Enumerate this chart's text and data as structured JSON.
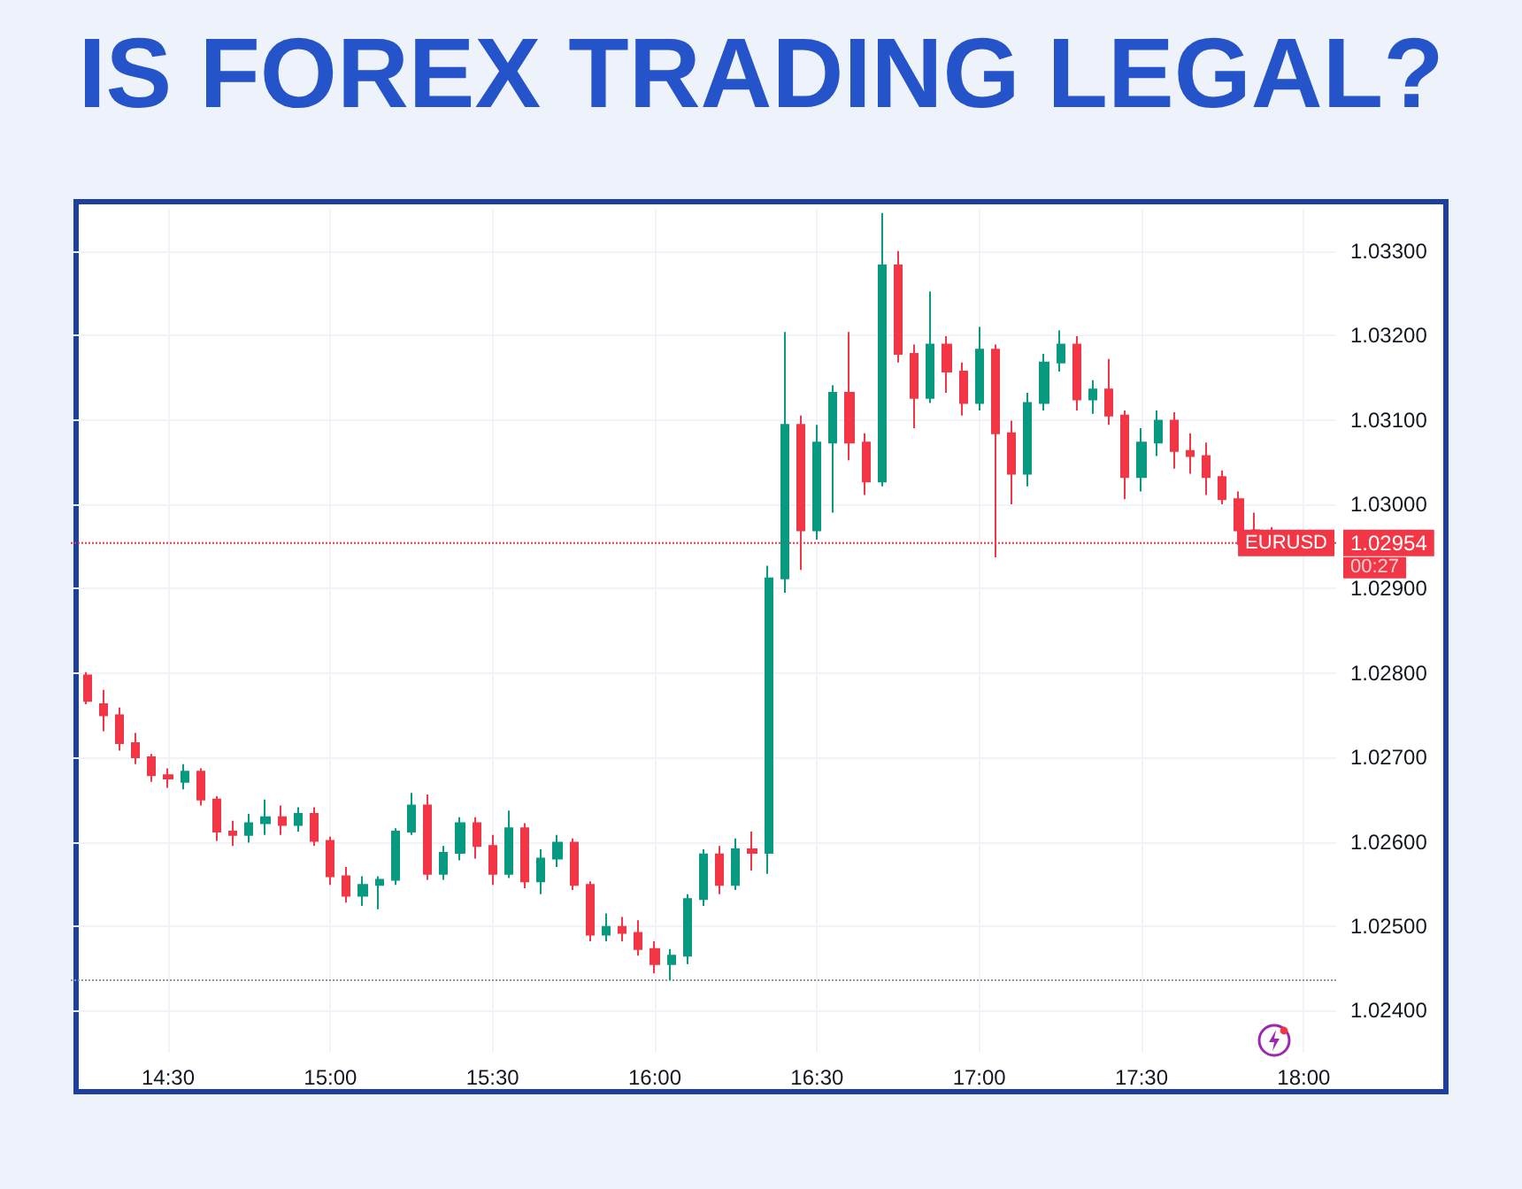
{
  "chart_data": {
    "type": "candlestick",
    "title": "IS FOREX TRADING LEGAL?",
    "x": [
      14.25,
      14.3,
      14.35,
      14.4,
      14.45,
      14.5,
      14.55,
      14.6,
      14.65,
      14.7,
      14.75,
      14.8,
      14.85,
      14.9,
      14.95,
      15,
      15.05,
      15.1,
      15.15,
      15.2,
      15.25,
      15.3,
      15.35,
      15.4,
      15.45,
      15.5,
      15.55,
      15.6,
      15.65,
      15.7,
      15.75,
      15.8,
      15.85,
      15.9,
      15.95,
      16,
      16.05,
      16.1,
      16.15,
      16.2,
      16.25,
      16.3,
      16.35,
      16.4,
      16.45,
      16.5,
      16.55,
      16.6,
      16.65,
      16.7,
      16.75,
      16.8,
      16.85,
      16.9,
      16.95,
      17,
      17.05,
      17.1,
      17.15,
      17.2,
      17.25,
      17.3,
      17.35,
      17.4,
      17.45,
      17.5,
      17.55,
      17.6,
      17.65,
      17.7,
      17.75,
      17.8,
      17.85,
      17.9
    ],
    "ohlc": [
      [
        1.02797,
        1.02801,
        1.02763,
        1.02767
      ],
      [
        1.02763,
        1.0278,
        1.02731,
        1.0275
      ],
      [
        1.0275,
        1.02759,
        1.02708,
        1.02717
      ],
      [
        1.02717,
        1.02729,
        1.02692,
        1.027
      ],
      [
        1.027,
        1.02704,
        1.02671,
        1.02679
      ],
      [
        1.02679,
        1.02687,
        1.02664,
        1.02675
      ],
      [
        1.02671,
        1.02692,
        1.02662,
        1.02683
      ],
      [
        1.02683,
        1.02687,
        1.02643,
        1.0265
      ],
      [
        1.0265,
        1.02654,
        1.02601,
        1.02612
      ],
      [
        1.02612,
        1.02625,
        1.02595,
        1.02608
      ],
      [
        1.02608,
        1.02633,
        1.02599,
        1.02622
      ],
      [
        1.02622,
        1.0265,
        1.02608,
        1.02629
      ],
      [
        1.02629,
        1.02643,
        1.02608,
        1.0262
      ],
      [
        1.0262,
        1.02641,
        1.02612,
        1.02633
      ],
      [
        1.02633,
        1.02641,
        1.02595,
        1.02601
      ],
      [
        1.02601,
        1.02606,
        1.02549,
        1.02559
      ],
      [
        1.02559,
        1.0257,
        1.02528,
        1.02536
      ],
      [
        1.02536,
        1.02559,
        1.02524,
        1.02549
      ],
      [
        1.02549,
        1.02559,
        1.0252,
        1.02555
      ],
      [
        1.02555,
        1.02616,
        1.02549,
        1.02612
      ],
      [
        1.02612,
        1.02658,
        1.02608,
        1.02643
      ],
      [
        1.02643,
        1.02656,
        1.02555,
        1.02562
      ],
      [
        1.02562,
        1.02595,
        1.02555,
        1.02587
      ],
      [
        1.02587,
        1.02629,
        1.02578,
        1.02622
      ],
      [
        1.02622,
        1.02629,
        1.0258,
        1.02595
      ],
      [
        1.02595,
        1.02608,
        1.02549,
        1.02562
      ],
      [
        1.02562,
        1.02637,
        1.02557,
        1.02616
      ],
      [
        1.02616,
        1.02622,
        1.02545,
        1.02553
      ],
      [
        1.02553,
        1.02591,
        1.02538,
        1.0258
      ],
      [
        1.0258,
        1.02608,
        1.0257,
        1.02599
      ],
      [
        1.02599,
        1.02604,
        1.02543,
        1.02549
      ],
      [
        1.02549,
        1.02553,
        1.02482,
        1.0249
      ],
      [
        1.0249,
        1.02515,
        1.02482,
        1.02499
      ],
      [
        1.02499,
        1.02511,
        1.02482,
        1.02492
      ],
      [
        1.02492,
        1.02507,
        1.02465,
        1.02473
      ],
      [
        1.02473,
        1.02482,
        1.02444,
        1.02455
      ],
      [
        1.02455,
        1.02473,
        1.02436,
        1.02465
      ],
      [
        1.02465,
        1.02538,
        1.02455,
        1.02532
      ],
      [
        1.02532,
        1.02591,
        1.02524,
        1.02585
      ],
      [
        1.02585,
        1.02595,
        1.02538,
        1.02549
      ],
      [
        1.02549,
        1.02604,
        1.02543,
        1.02591
      ],
      [
        1.02591,
        1.02612,
        1.02566,
        1.02587
      ],
      [
        1.02587,
        1.02927,
        1.02562,
        1.02912
      ],
      [
        1.02912,
        1.03204,
        1.02895,
        1.03094
      ],
      [
        1.03094,
        1.03105,
        1.02922,
        1.02969
      ],
      [
        1.02969,
        1.03094,
        1.02958,
        1.03073
      ],
      [
        1.03073,
        1.03141,
        1.0299,
        1.03132
      ],
      [
        1.03132,
        1.03204,
        1.03052,
        1.03073
      ],
      [
        1.03073,
        1.03084,
        1.03011,
        1.03027
      ],
      [
        1.03027,
        1.03345,
        1.03021,
        1.03283
      ],
      [
        1.03283,
        1.033,
        1.03168,
        1.03178
      ],
      [
        1.03178,
        1.03189,
        1.0309,
        1.03126
      ],
      [
        1.03126,
        1.03252,
        1.0312,
        1.03189
      ],
      [
        1.03189,
        1.03199,
        1.03132,
        1.03157
      ],
      [
        1.03157,
        1.03168,
        1.03105,
        1.0312
      ],
      [
        1.0312,
        1.0321,
        1.03111,
        1.03183
      ],
      [
        1.03183,
        1.03189,
        1.02937,
        1.03084
      ],
      [
        1.03084,
        1.03099,
        1.03,
        1.03036
      ],
      [
        1.03036,
        1.03132,
        1.03021,
        1.0312
      ],
      [
        1.0312,
        1.03178,
        1.03111,
        1.03168
      ],
      [
        1.03168,
        1.03206,
        1.03157,
        1.03189
      ],
      [
        1.03189,
        1.03199,
        1.03111,
        1.03124
      ],
      [
        1.03124,
        1.03147,
        1.03107,
        1.03136
      ],
      [
        1.03136,
        1.03172,
        1.03094,
        1.03105
      ],
      [
        1.03105,
        1.03111,
        1.03006,
        1.03032
      ],
      [
        1.03032,
        1.0309,
        1.03015,
        1.03073
      ],
      [
        1.03073,
        1.03111,
        1.03057,
        1.03099
      ],
      [
        1.03099,
        1.03109,
        1.03042,
        1.03063
      ],
      [
        1.03063,
        1.03084,
        1.03036,
        1.03057
      ],
      [
        1.03057,
        1.03073,
        1.03011,
        1.03032
      ],
      [
        1.03032,
        1.0304,
        1.03,
        1.03006
      ],
      [
        1.03006,
        1.03015,
        1.02952,
        1.02969
      ],
      [
        1.02969,
        1.0299,
        1.02943,
        1.0296
      ],
      [
        1.0296,
        1.02973,
        1.02948,
        1.02954
      ]
    ],
    "colors": [
      "#f23645",
      "#f23645",
      "#f23645",
      "#f23645",
      "#f23645",
      "#f23645",
      "#089981",
      "#f23645",
      "#f23645",
      "#f23645",
      "#089981",
      "#089981",
      "#f23645",
      "#089981",
      "#f23645",
      "#f23645",
      "#f23645",
      "#089981",
      "#089981",
      "#089981",
      "#089981",
      "#f23645",
      "#089981",
      "#089981",
      "#f23645",
      "#f23645",
      "#089981",
      "#f23645",
      "#089981",
      "#089981",
      "#f23645",
      "#f23645",
      "#089981",
      "#f23645",
      "#f23645",
      "#f23645",
      "#089981",
      "#089981",
      "#089981",
      "#f23645",
      "#089981",
      "#f23645",
      "#089981",
      "#089981",
      "#f23645",
      "#089981",
      "#089981",
      "#f23645",
      "#f23645",
      "#089981",
      "#f23645",
      "#f23645",
      "#089981",
      "#f23645",
      "#f23645",
      "#089981",
      "#f23645",
      "#f23645",
      "#089981",
      "#089981",
      "#089981",
      "#f23645",
      "#089981",
      "#f23645",
      "#f23645",
      "#089981",
      "#089981",
      "#f23645",
      "#f23645",
      "#f23645",
      "#f23645",
      "#f23645",
      "#f23645",
      "#f23645"
    ],
    "xlim": [
      14.2,
      18.1
    ],
    "xticks": [
      {
        "value": 14.5,
        "label": "14:30"
      },
      {
        "value": 15,
        "label": "15:00"
      },
      {
        "value": 15.5,
        "label": "15:30"
      },
      {
        "value": 16,
        "label": "16:00"
      },
      {
        "value": 16.5,
        "label": "16:30"
      },
      {
        "value": 17,
        "label": "17:00"
      },
      {
        "value": 17.5,
        "label": "17:30"
      },
      {
        "value": 18,
        "label": "18:00"
      }
    ],
    "ylim": [
      1.0235,
      1.0335
    ],
    "yticks": [
      {
        "value": 1.024,
        "label": "1.02400"
      },
      {
        "value": 1.025,
        "label": "1.02500"
      },
      {
        "value": 1.026,
        "label": "1.02600"
      },
      {
        "value": 1.027,
        "label": "1.02700"
      },
      {
        "value": 1.028,
        "label": "1.02800"
      },
      {
        "value": 1.029,
        "label": "1.02900"
      },
      {
        "value": 1.03,
        "label": "1.03000"
      },
      {
        "value": 1.031,
        "label": "1.03100"
      },
      {
        "value": 1.032,
        "label": "1.03200"
      },
      {
        "value": 1.033,
        "label": "1.03300"
      }
    ],
    "ref_lines": [
      {
        "axis": "y",
        "value": 1.02954,
        "label": "1.02954",
        "color": "#f23645",
        "line_style": "dotted"
      },
      {
        "axis": "y",
        "value": 1.02436,
        "color": "#9598a1",
        "line_style": "dotted"
      }
    ],
    "annotations": [
      {
        "text": "EURUSD",
        "y": 1.02954
      },
      "00:27"
    ],
    "grid": true
  }
}
